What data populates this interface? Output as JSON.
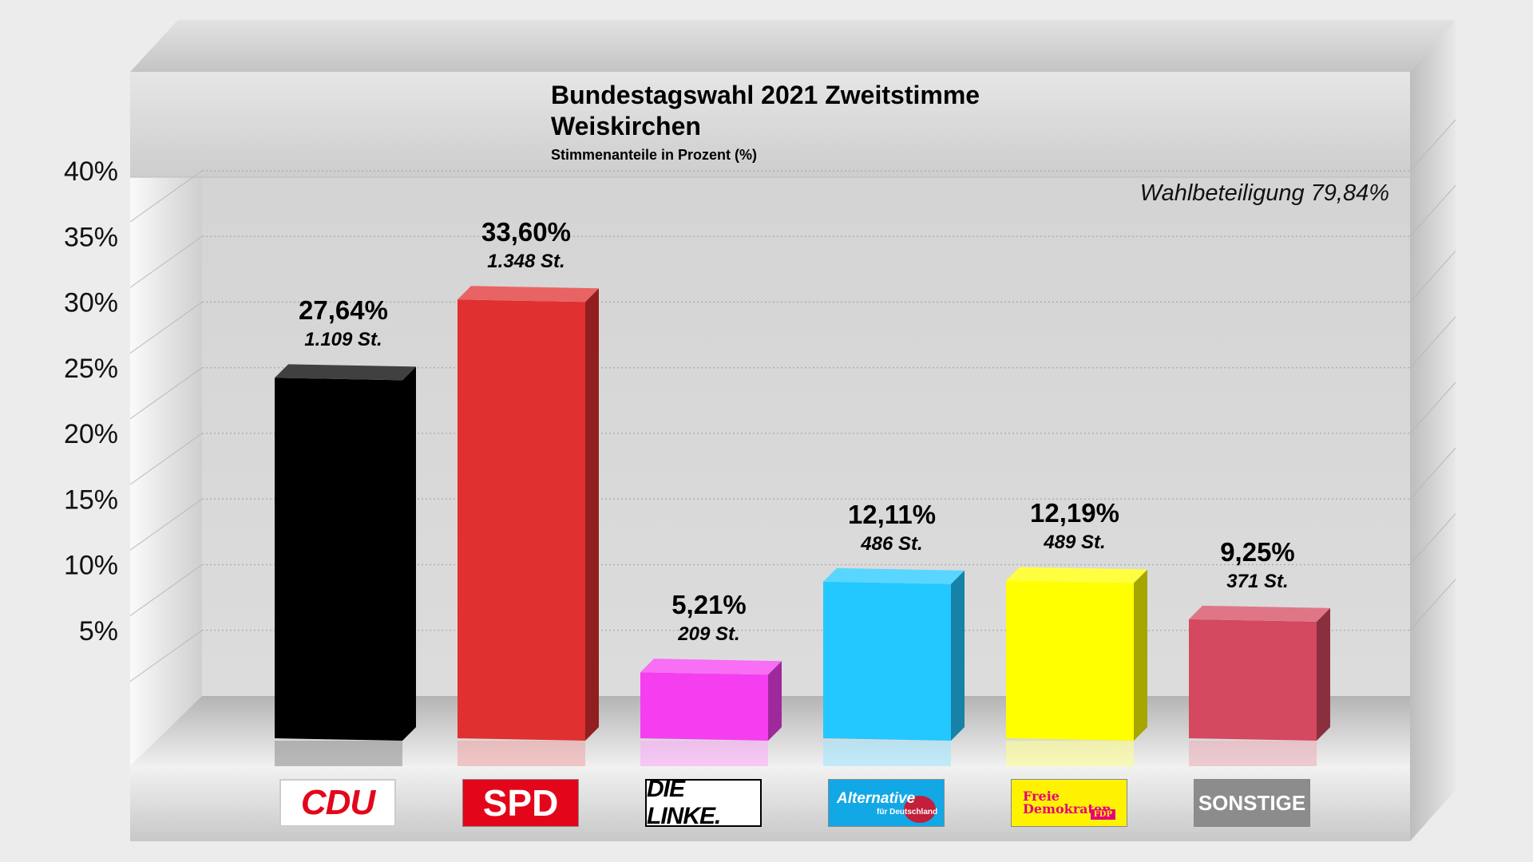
{
  "chart_data": {
    "type": "bar",
    "title": [
      "Bundestagswahl 2021 Zweitstimme",
      "Weiskirchen"
    ],
    "subtitle": "Stimmenanteile in Prozent (%)",
    "annotation": "Wahlbeteiligung 79,84%",
    "ylim": [
      0,
      40
    ],
    "ytick_values": [
      5,
      10,
      15,
      20,
      25,
      30,
      35,
      40
    ],
    "yticks": [
      "5%",
      "10%",
      "15%",
      "20%",
      "25%",
      "30%",
      "35%",
      "40%"
    ],
    "grid": true,
    "categories": [
      "CDU",
      "SPD",
      "DIE LINKE.",
      "Alternative für Deutschland",
      "Freie Demokraten FDP",
      "SONSTIGE"
    ],
    "values": [
      27.64,
      33.6,
      5.21,
      12.11,
      12.19,
      9.25
    ],
    "value_labels": [
      "27,64%",
      "33,60%",
      "5,21%",
      "12,11%",
      "12,19%",
      "9,25%"
    ],
    "votes": [
      1109,
      1348,
      209,
      486,
      489,
      371
    ],
    "vote_labels": [
      "1.109 St.",
      "1.348 St.",
      "209 St.",
      "486 St.",
      "489 St.",
      "371 St."
    ],
    "colors": [
      "#000000",
      "#e03030",
      "#f53ef0",
      "#22c8ff",
      "#ffff00",
      "#d44860"
    ]
  },
  "logos": {
    "cdu": "CDU",
    "spd": "SPD",
    "linke": "DIE LINKE.",
    "afd_main": "Alternative",
    "afd_sub": "für Deutschland",
    "fdp_line1": "Freie",
    "fdp_line2": "Demokraten",
    "fdp_tag": "FDP",
    "sonstige": "SONSTIGE"
  }
}
